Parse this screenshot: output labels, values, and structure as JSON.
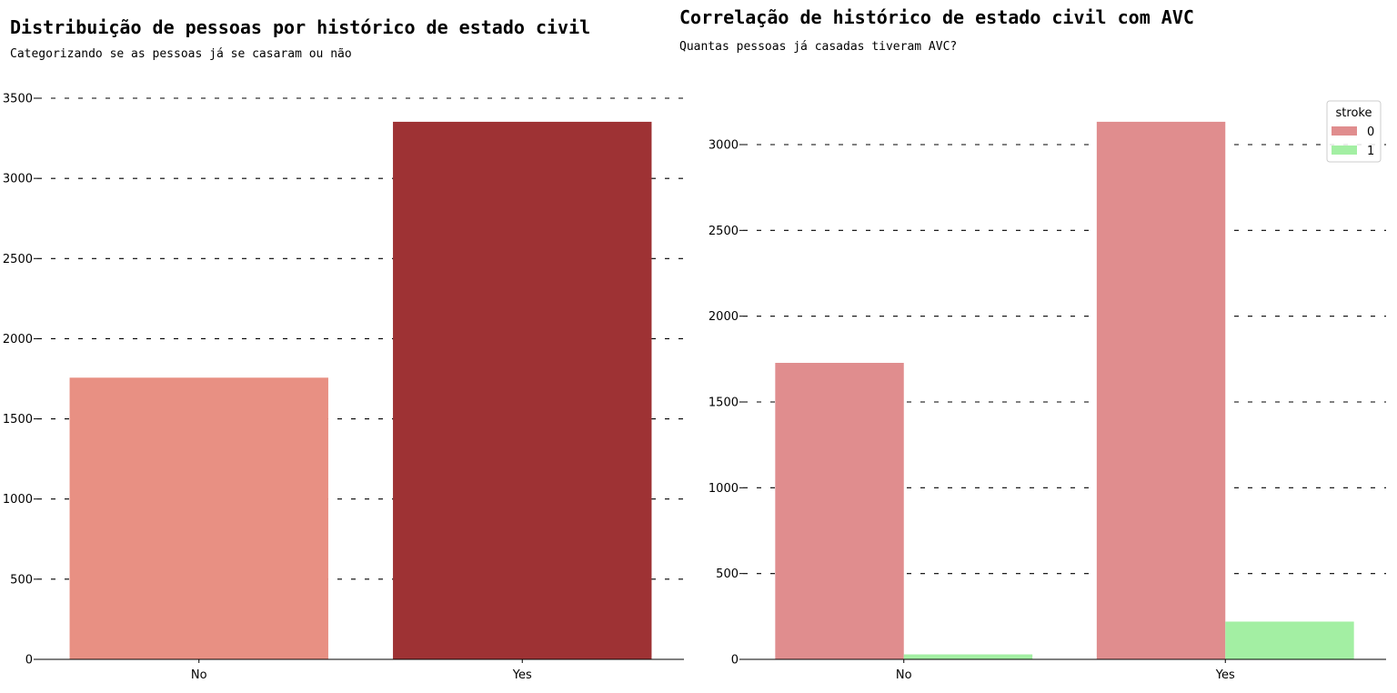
{
  "chart_data": [
    {
      "type": "bar",
      "title": "Distribuição de pessoas por histórico de estado civil",
      "subtitle": "Categorizando se as pessoas já se casaram ou não",
      "xlabel": "",
      "ylabel": "",
      "categories": [
        "No",
        "Yes"
      ],
      "values": [
        1757,
        3353
      ],
      "colors": [
        "#e89083",
        "#9e3234"
      ],
      "ylim": [
        0,
        3500
      ],
      "yticks": [
        0,
        500,
        1000,
        1500,
        2000,
        2500,
        3000,
        3500
      ],
      "ytick_labels": [
        "0",
        "500",
        "1000",
        "1500",
        "2000",
        "2500",
        "3000",
        "3500"
      ],
      "grid": "horizontal dashed"
    },
    {
      "type": "bar",
      "title": "Correlação de histórico de estado civil com AVC",
      "subtitle": "Quantas pessoas já casadas tiveram AVC?",
      "xlabel": "",
      "ylabel": "",
      "categories": [
        "No",
        "Yes"
      ],
      "series": [
        {
          "name": "0",
          "values": [
            1728,
            3133
          ],
          "color": "#e08d8e"
        },
        {
          "name": "1",
          "values": [
            29,
            220
          ],
          "color": "#a3efa3"
        }
      ],
      "legend_title": "stroke",
      "legend": "top-right",
      "ylim": [
        0,
        3250
      ],
      "yticks": [
        0,
        500,
        1000,
        1500,
        2000,
        2500,
        3000
      ],
      "ytick_labels": [
        "0",
        "500",
        "1000",
        "1500",
        "2000",
        "2500",
        "3000"
      ],
      "grid": "horizontal dashed"
    }
  ]
}
